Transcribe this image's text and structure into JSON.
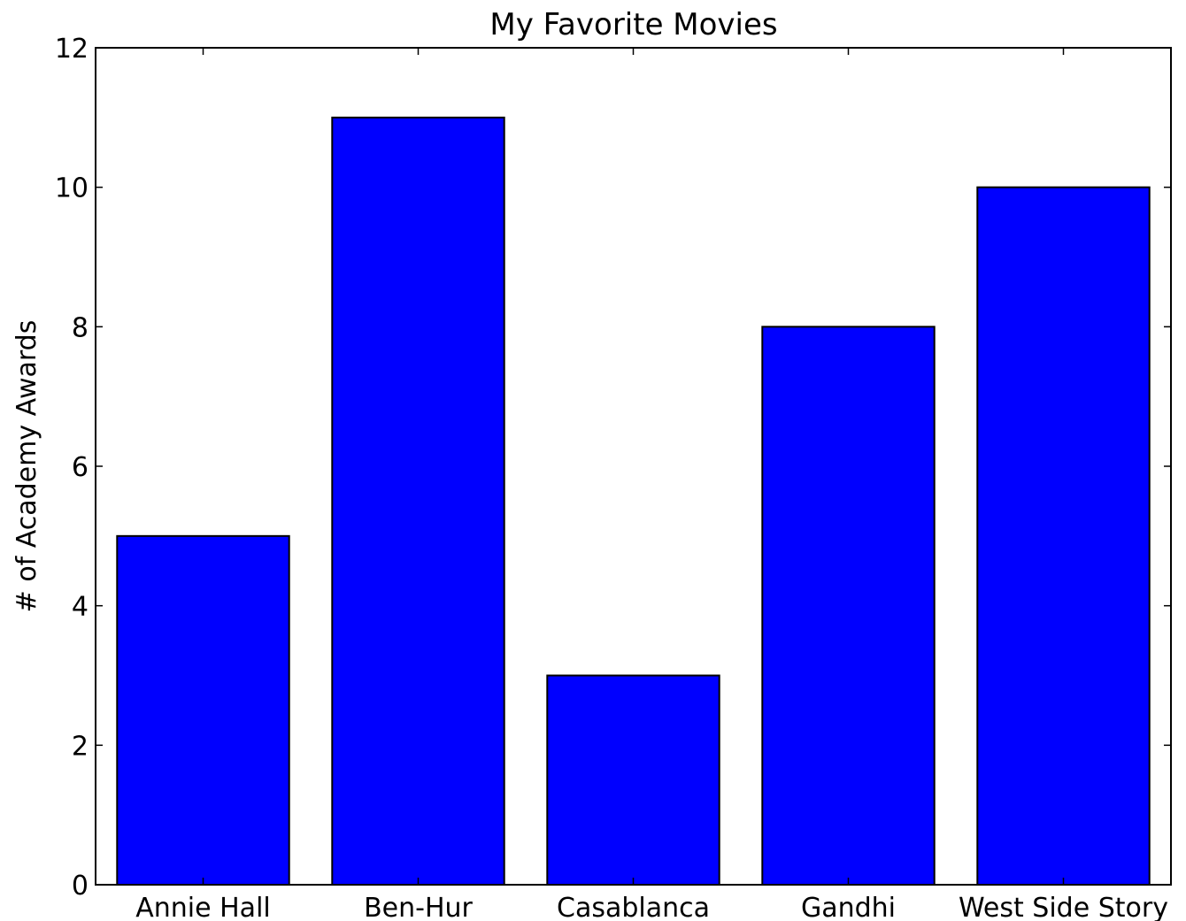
{
  "chart_data": {
    "type": "bar",
    "title": "My Favorite Movies",
    "xlabel": "",
    "ylabel": "# of Academy Awards",
    "categories": [
      "Annie Hall",
      "Ben-Hur",
      "Casablanca",
      "Gandhi",
      "West Side Story"
    ],
    "values": [
      5,
      11,
      3,
      8,
      10
    ],
    "ylim": [
      0,
      12
    ],
    "yticks": [
      0,
      2,
      4,
      6,
      8,
      10,
      12
    ],
    "ytick_labels": [
      "0",
      "2",
      "4",
      "6",
      "8",
      "10",
      "12"
    ],
    "bar_color": "#0000ff",
    "edge_color": "#000000",
    "grid": false,
    "legend": "none"
  }
}
